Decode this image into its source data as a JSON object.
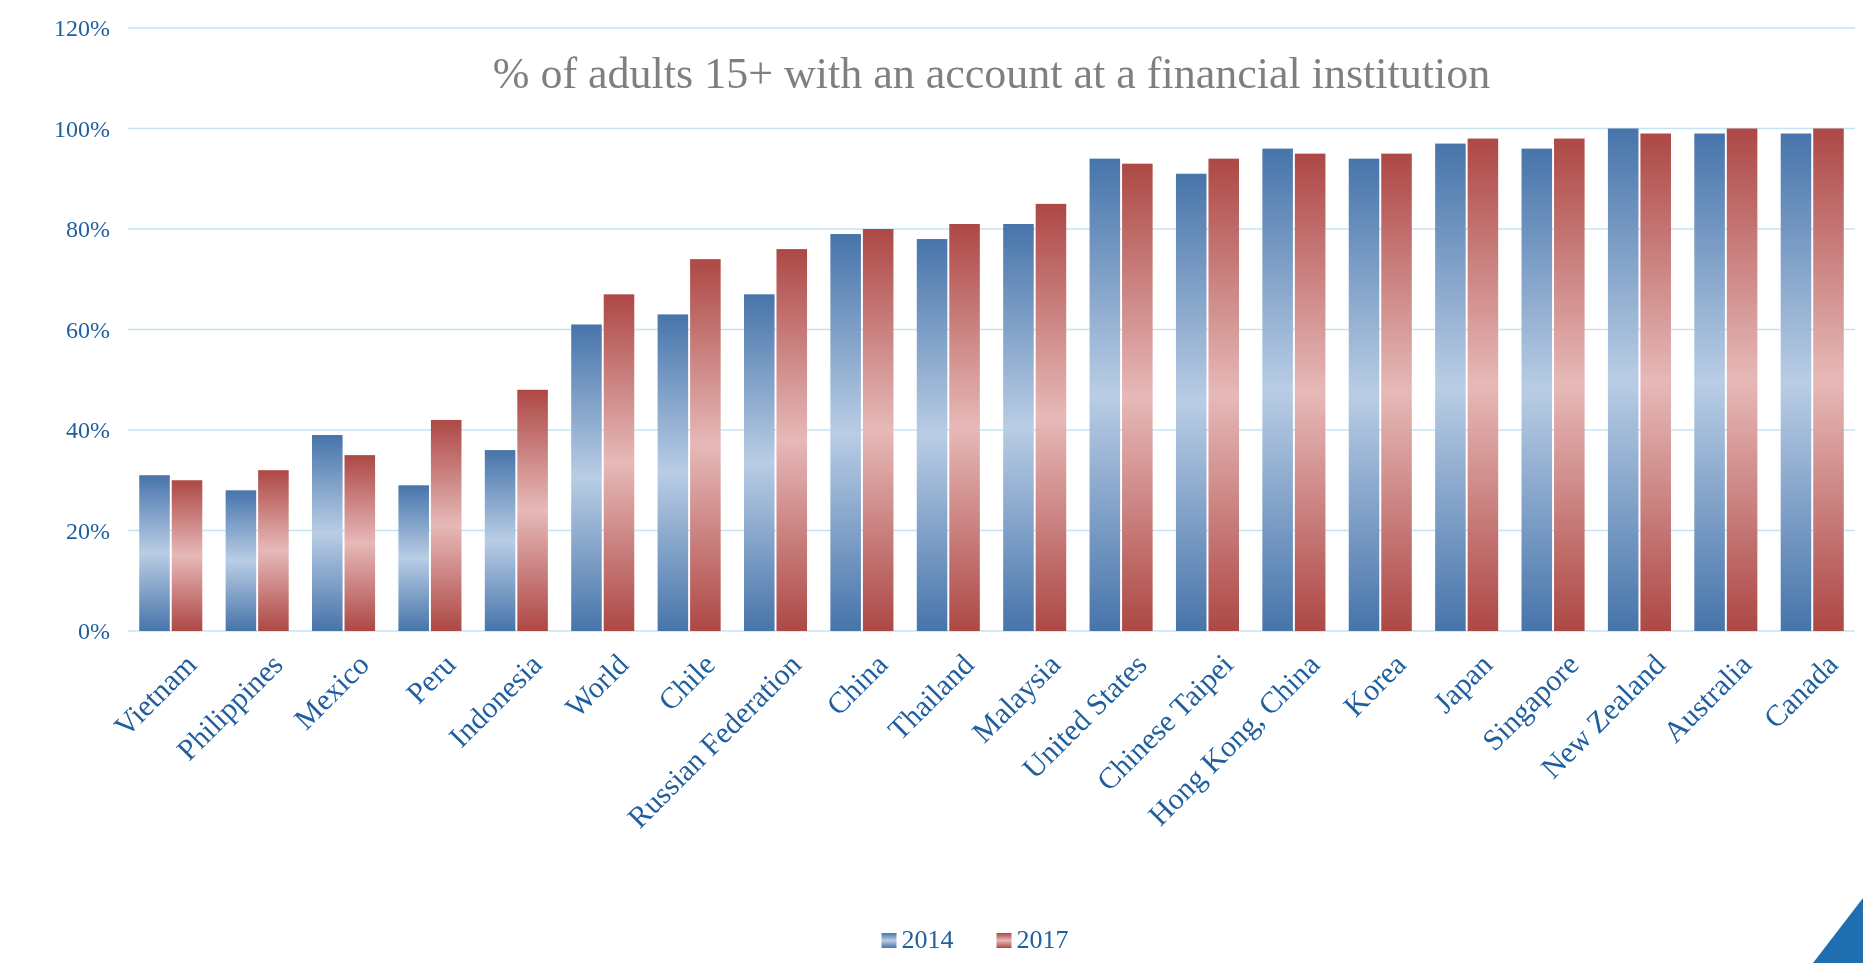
{
  "chart_data": {
    "type": "bar",
    "title": "% of adults 15+ with an account at a financial institution",
    "categories": [
      "Vietnam",
      "Philippines",
      "Mexico",
      "Peru",
      "Indonesia",
      "World",
      "Chile",
      "Russian Federation",
      "China",
      "Thailand",
      "Malaysia",
      "United States",
      "Chinese Taipei",
      "Hong Kong, China",
      "Korea",
      "Japan",
      "Singapore",
      "New Zealand",
      "Australia",
      "Canada"
    ],
    "series": [
      {
        "name": "2014",
        "color": "#4f81bd",
        "values": [
          31,
          28,
          39,
          29,
          36,
          61,
          63,
          67,
          79,
          78,
          81,
          94,
          91,
          96,
          94,
          97,
          96,
          100,
          99,
          99
        ]
      },
      {
        "name": "2017",
        "color": "#c0504d",
        "values": [
          30,
          32,
          35,
          42,
          48,
          67,
          74,
          76,
          80,
          81,
          85,
          93,
          94,
          95,
          95,
          98,
          98,
          99,
          100,
          100
        ]
      }
    ],
    "ylim": [
      0,
      120
    ],
    "yticks": [
      {
        "value": 0,
        "label": "0%"
      },
      {
        "value": 20,
        "label": "20%"
      },
      {
        "value": 40,
        "label": "40%"
      },
      {
        "value": 60,
        "label": "60%"
      },
      {
        "value": 80,
        "label": "80%"
      },
      {
        "value": 100,
        "label": "100%"
      },
      {
        "value": 120,
        "label": "120%"
      }
    ],
    "grid": "y",
    "legend": "bottom"
  }
}
